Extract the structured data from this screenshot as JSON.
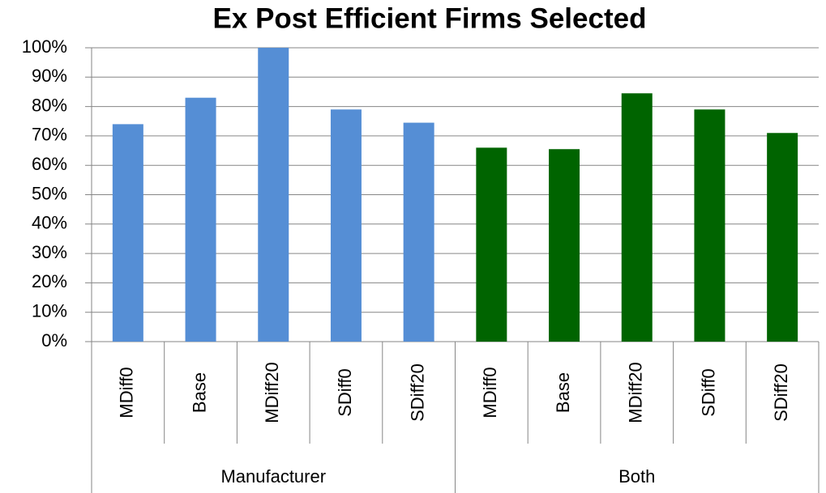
{
  "chart_data": {
    "type": "bar",
    "title": "Ex Post Efficient Firms Selected",
    "groups": [
      {
        "name": "Manufacturer",
        "color": "#558ed5",
        "categories": [
          "MDiff0",
          "Base",
          "MDiff20",
          "SDiff0",
          "SDiff20"
        ],
        "values": [
          74,
          83,
          100,
          79,
          74.5
        ]
      },
      {
        "name": "Both",
        "color": "#006400",
        "categories": [
          "MDiff0",
          "Base",
          "MDiff20",
          "SDiff0",
          "SDiff20"
        ],
        "values": [
          66,
          65.5,
          84.5,
          79,
          71
        ]
      }
    ],
    "ylim": [
      0,
      100
    ],
    "yticks": [
      {
        "value": 0,
        "label": "0%"
      },
      {
        "value": 10,
        "label": "10%"
      },
      {
        "value": 20,
        "label": "20%"
      },
      {
        "value": 30,
        "label": "30%"
      },
      {
        "value": 40,
        "label": "40%"
      },
      {
        "value": 50,
        "label": "50%"
      },
      {
        "value": 60,
        "label": "60%"
      },
      {
        "value": 70,
        "label": "70%"
      },
      {
        "value": 80,
        "label": "80%"
      },
      {
        "value": 90,
        "label": "90%"
      },
      {
        "value": 100,
        "label": "100%"
      }
    ],
    "grid": true
  }
}
